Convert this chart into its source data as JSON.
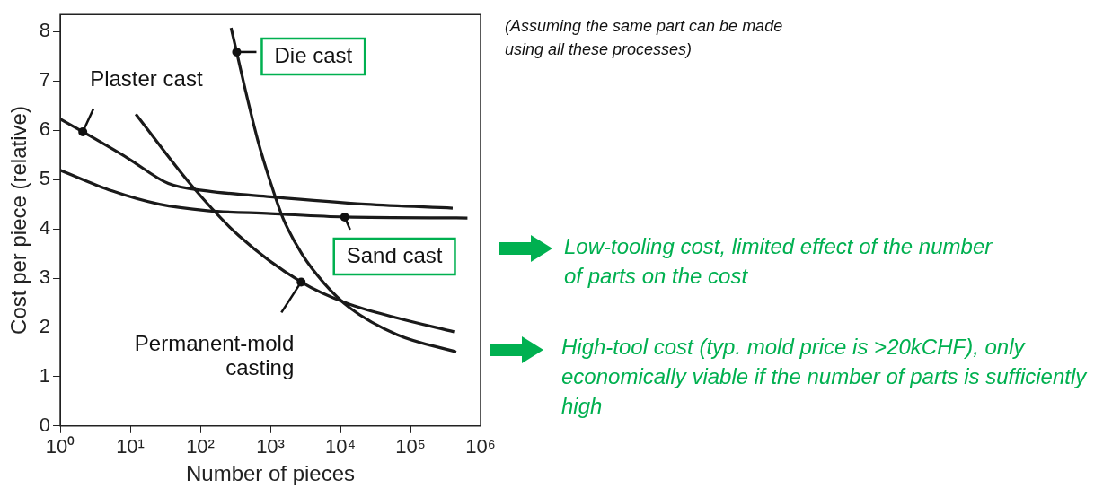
{
  "chart_data": {
    "type": "line",
    "xlabel": "Number of pieces",
    "ylabel": "Cost per piece (relative)",
    "log": "x",
    "xlim": [
      1,
      1000000
    ],
    "xticks": [
      {
        "value": 1,
        "label": "10⁰"
      },
      {
        "value": 10,
        "label": "10¹"
      },
      {
        "value": 100,
        "label": "10²"
      },
      {
        "value": 1000,
        "label": "10³"
      },
      {
        "value": 10000,
        "label": "10⁴"
      },
      {
        "value": 100000,
        "label": "10⁵"
      },
      {
        "value": 1000000,
        "label": "10⁶"
      }
    ],
    "ylim": [
      0,
      8.35
    ],
    "yticks": [
      0,
      1,
      2,
      3,
      4,
      5,
      6,
      7,
      8
    ],
    "grid": false,
    "legend": false,
    "marker": "none",
    "line_style": "solid",
    "series": [
      {
        "color": "#1a1a1a",
        "x": [
          1,
          2.1,
          9.1,
          35,
          126,
          1000,
          22900,
          400000
        ],
        "values": [
          6.23,
          5.97,
          5.44,
          4.92,
          4.77,
          4.65,
          4.5,
          4.42
        ]
      },
      {
        "color": "#1a1a1a",
        "x": [
          1,
          5.5,
          26,
          126,
          1000,
          11500,
          650000
        ],
        "values": [
          5.19,
          4.77,
          4.5,
          4.37,
          4.31,
          4.24,
          4.22
        ]
      },
      {
        "color": "#1a1a1a",
        "x": [
          12,
          74,
          355,
          2750,
          12300,
          65000,
          420000
        ],
        "values": [
          6.33,
          4.89,
          3.86,
          2.92,
          2.49,
          2.19,
          1.91
        ]
      },
      {
        "color": "#1a1a1a",
        "x": [
          275,
          330,
          437,
          660,
          1000,
          1510,
          2820,
          5900,
          13500,
          65000,
          450000
        ],
        "values": [
          8.08,
          7.59,
          6.83,
          5.8,
          4.95,
          4.22,
          3.49,
          2.89,
          2.4,
          1.85,
          1.5
        ]
      }
    ],
    "annotations": [
      {
        "text": "Plaster cast",
        "x": 2.1,
        "y": 5.97
      },
      {
        "text": "Sand cast",
        "x": 11500,
        "y": 4.24
      },
      {
        "text": "Permanent-mold casting",
        "x": 2750,
        "y": 2.92
      },
      {
        "text": "Die cast",
        "x": 330,
        "y": 7.59
      },
      "(Assuming the same part can be made using all these processes)",
      "Low-tooling cost, limited effect of the number of parts on the cost",
      "High-tool cost (typ. mold price is >20kCHF), only economically viable if the number of parts is sufficiently high"
    ]
  }
}
